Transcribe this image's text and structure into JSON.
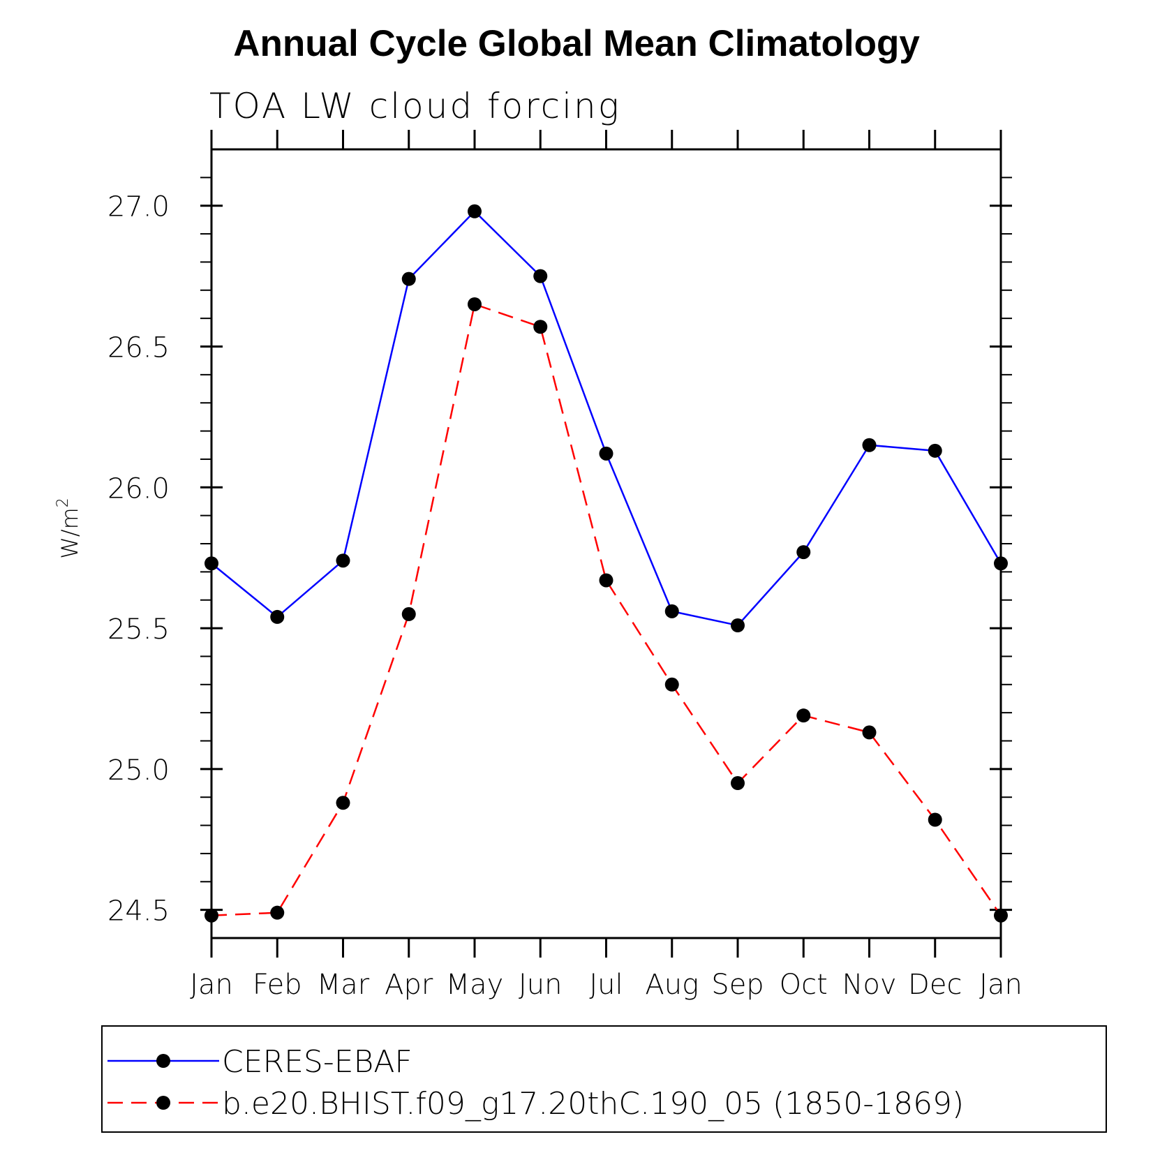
{
  "chart_data": {
    "type": "line",
    "title": "Annual Cycle Global Mean Climatology",
    "subtitle": "TOA LW cloud forcing",
    "ylabel": "W/m",
    "ylabel_sup": "2",
    "xlabel": "",
    "categories": [
      "Jan",
      "Feb",
      "Mar",
      "Apr",
      "May",
      "Jun",
      "Jul",
      "Aug",
      "Sep",
      "Oct",
      "Nov",
      "Dec",
      "Jan"
    ],
    "ylim": [
      24.4,
      27.2
    ],
    "yticks": [
      "27.0",
      "26.5",
      "26.0",
      "25.5",
      "25.0",
      "24.5"
    ],
    "grid": false,
    "legend_placement": "bottom",
    "series": [
      {
        "name": "CERES-EBAF",
        "color": "#0000ff",
        "style": "solid",
        "marker": "filled-circle",
        "values": [
          25.73,
          25.54,
          25.74,
          26.74,
          26.98,
          26.75,
          26.12,
          25.56,
          25.51,
          25.77,
          26.15,
          26.13,
          25.73
        ]
      },
      {
        "name": "b.e20.BHIST.f09_g17.20thC.190_05 (1850-1869)",
        "color": "#ff0000",
        "style": "dashed",
        "marker": "filled-circle",
        "values": [
          24.48,
          24.49,
          24.88,
          25.55,
          26.65,
          26.57,
          25.67,
          25.3,
          24.95,
          25.19,
          25.13,
          24.82,
          24.48
        ]
      }
    ]
  }
}
